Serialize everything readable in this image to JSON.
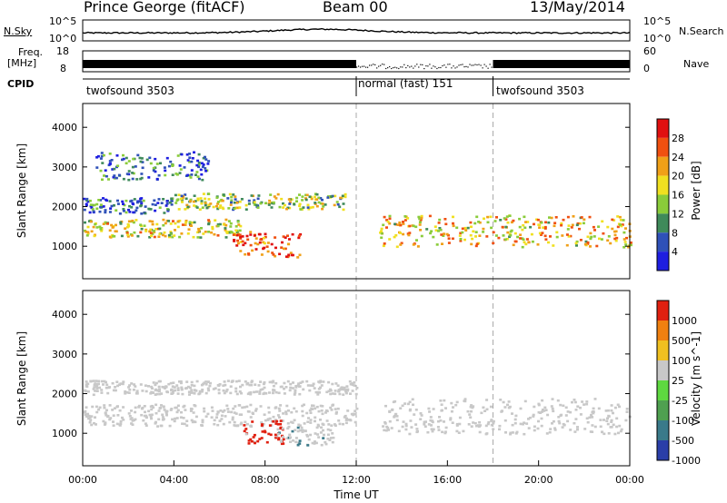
{
  "header": {
    "radar": "Prince George (fitACF)",
    "beam": "Beam 00",
    "date": "13/May/2014"
  },
  "top_panels": {
    "nsky_label": "N.Sky",
    "nsky_ticks": [
      "10^5",
      "10^0"
    ],
    "nsearch_label": "N.Search",
    "nsearch_ticks": [
      "10^5",
      "10^0"
    ],
    "freq_label_1": "Freq.",
    "freq_label_2": "[MHz]",
    "freq_ticks": [
      "18",
      "8"
    ],
    "nave_label": "Nave",
    "nave_ticks": [
      "60",
      "0"
    ],
    "cpid_label": "CPID",
    "cpid_segments": [
      {
        "name": "twofsound 3503",
        "start_hour": 0,
        "end_hour": 12
      },
      {
        "name": "normal (fast) 151",
        "start_hour": 12,
        "end_hour": 18
      },
      {
        "name": "twofsound 3503",
        "start_hour": 18,
        "end_hour": 24
      }
    ]
  },
  "chart_data": [
    {
      "type": "heatmap",
      "panel": "power",
      "ylabel": "Slant Range [km]",
      "yticks": [
        1000,
        2000,
        3000,
        4000
      ],
      "ylim": [
        180,
        4600
      ],
      "xlim": [
        0,
        24
      ],
      "colorbar_label": "Power [dB]",
      "colorbar_ticks": [
        "28",
        "24",
        "20",
        "16",
        "12",
        "8",
        "4"
      ],
      "colors": [
        "#1e1ee0",
        "#2f51b8",
        "#3f8a5a",
        "#8acc3a",
        "#f0e020",
        "#f0a018",
        "#f05010",
        "#e01010"
      ],
      "echo_bands": [
        {
          "t0": 0,
          "t1": 7,
          "r0": 1250,
          "r1": 1700,
          "level": 0.55
        },
        {
          "t0": 0,
          "t1": 4,
          "r0": 1850,
          "r1": 2250,
          "level": 0.2
        },
        {
          "t0": 4,
          "t1": 11.5,
          "r0": 1950,
          "r1": 2350,
          "level": 0.45
        },
        {
          "t0": 6.5,
          "t1": 9.5,
          "r0": 750,
          "r1": 1400,
          "level": 0.85
        },
        {
          "t0": 13,
          "t1": 24,
          "r0": 1000,
          "r1": 1800,
          "level": 0.6
        },
        {
          "t0": 0.5,
          "t1": 5.5,
          "r0": 2700,
          "r1": 3400,
          "level": 0.25
        }
      ]
    },
    {
      "type": "heatmap",
      "panel": "velocity",
      "ylabel": "Slant Range [km]",
      "yticks": [
        1000,
        2000,
        3000,
        4000
      ],
      "ylim": [
        180,
        4600
      ],
      "xlim": [
        0,
        24
      ],
      "xticks": [
        "00:00",
        "04:00",
        "08:00",
        "12:00",
        "16:00",
        "20:00",
        "00:00"
      ],
      "xlabel": "Time UT",
      "colorbar_label": "Velocity [m s^-1]",
      "colorbar_ticks": [
        "1000",
        "500",
        "100",
        "25",
        "-25",
        "-100",
        "-500",
        "-1000"
      ],
      "colors": [
        "#2a3ea8",
        "#3a7a8a",
        "#4fa050",
        "#5ed840",
        "#c8c8c8",
        "#f0c020",
        "#f08010",
        "#e02010"
      ],
      "echo_bands": [
        {
          "t0": 0,
          "t1": 12,
          "r0": 1200,
          "r1": 1750,
          "level": 0.5
        },
        {
          "t0": 0,
          "t1": 12,
          "r0": 2000,
          "r1": 2350,
          "level": 0.5
        },
        {
          "t0": 13,
          "t1": 24,
          "r0": 1000,
          "r1": 1900,
          "level": 0.5
        },
        {
          "t0": 7,
          "t1": 8.8,
          "r0": 750,
          "r1": 1350,
          "level": 0.9
        },
        {
          "t0": 8.5,
          "t1": 11,
          "r0": 700,
          "r1": 1200,
          "level": 0.15
        }
      ]
    }
  ]
}
